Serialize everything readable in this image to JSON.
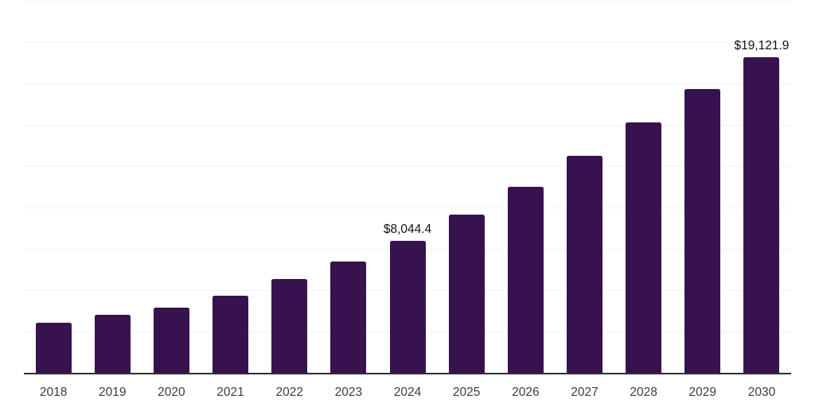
{
  "chart_data": {
    "type": "bar",
    "title": "",
    "xlabel": "",
    "ylabel": "",
    "categories": [
      "2018",
      "2019",
      "2020",
      "2021",
      "2022",
      "2023",
      "2024",
      "2025",
      "2026",
      "2027",
      "2028",
      "2029",
      "2030"
    ],
    "values": [
      3080,
      3560,
      3990,
      4700,
      5720,
      6780,
      8044.4,
      9610,
      11290,
      13170,
      15180,
      17200,
      19121.9
    ],
    "data_labels": [
      {
        "category": "2024",
        "text": "$8,044.4"
      },
      {
        "category": "2030",
        "text": "$19,121.9"
      }
    ],
    "ylim": [
      0,
      22500
    ],
    "gridline_step": 2500,
    "grid": true,
    "legend": false,
    "y_axis_tick_labels_visible": false,
    "colors": {
      "bar": "#36124F",
      "gridline": "#f2f2f2",
      "axis_line": "#2f2f2f",
      "tick_label": "#3d3d3d",
      "data_label": "#111111",
      "background": "#ffffff"
    }
  }
}
